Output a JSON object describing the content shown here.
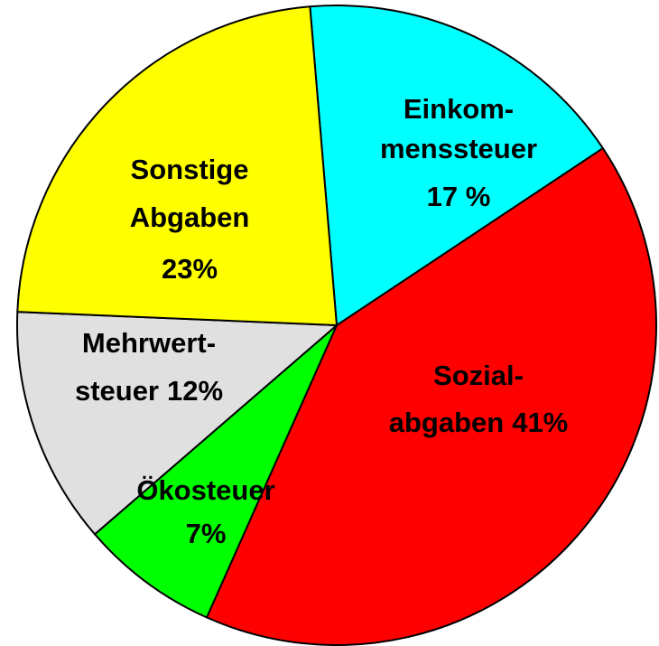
{
  "chart_data": {
    "type": "pie",
    "categories": [
      [
        "Einkom-",
        "menssteuer"
      ],
      [
        "Sozial-",
        "abgaben"
      ],
      [
        "Ökosteuer"
      ],
      [
        "Mehrwert-",
        "steuer"
      ],
      [
        "Sonstige",
        "Abgaben"
      ]
    ],
    "values": [
      17,
      41,
      7,
      12,
      23
    ],
    "value_labels": [
      "17 %",
      "41%",
      "7%",
      "12%",
      "23%"
    ],
    "colors": [
      "#00ffff",
      "#ff0000",
      "#00ff00",
      "#e0e0e0",
      "#ffff00"
    ]
  }
}
